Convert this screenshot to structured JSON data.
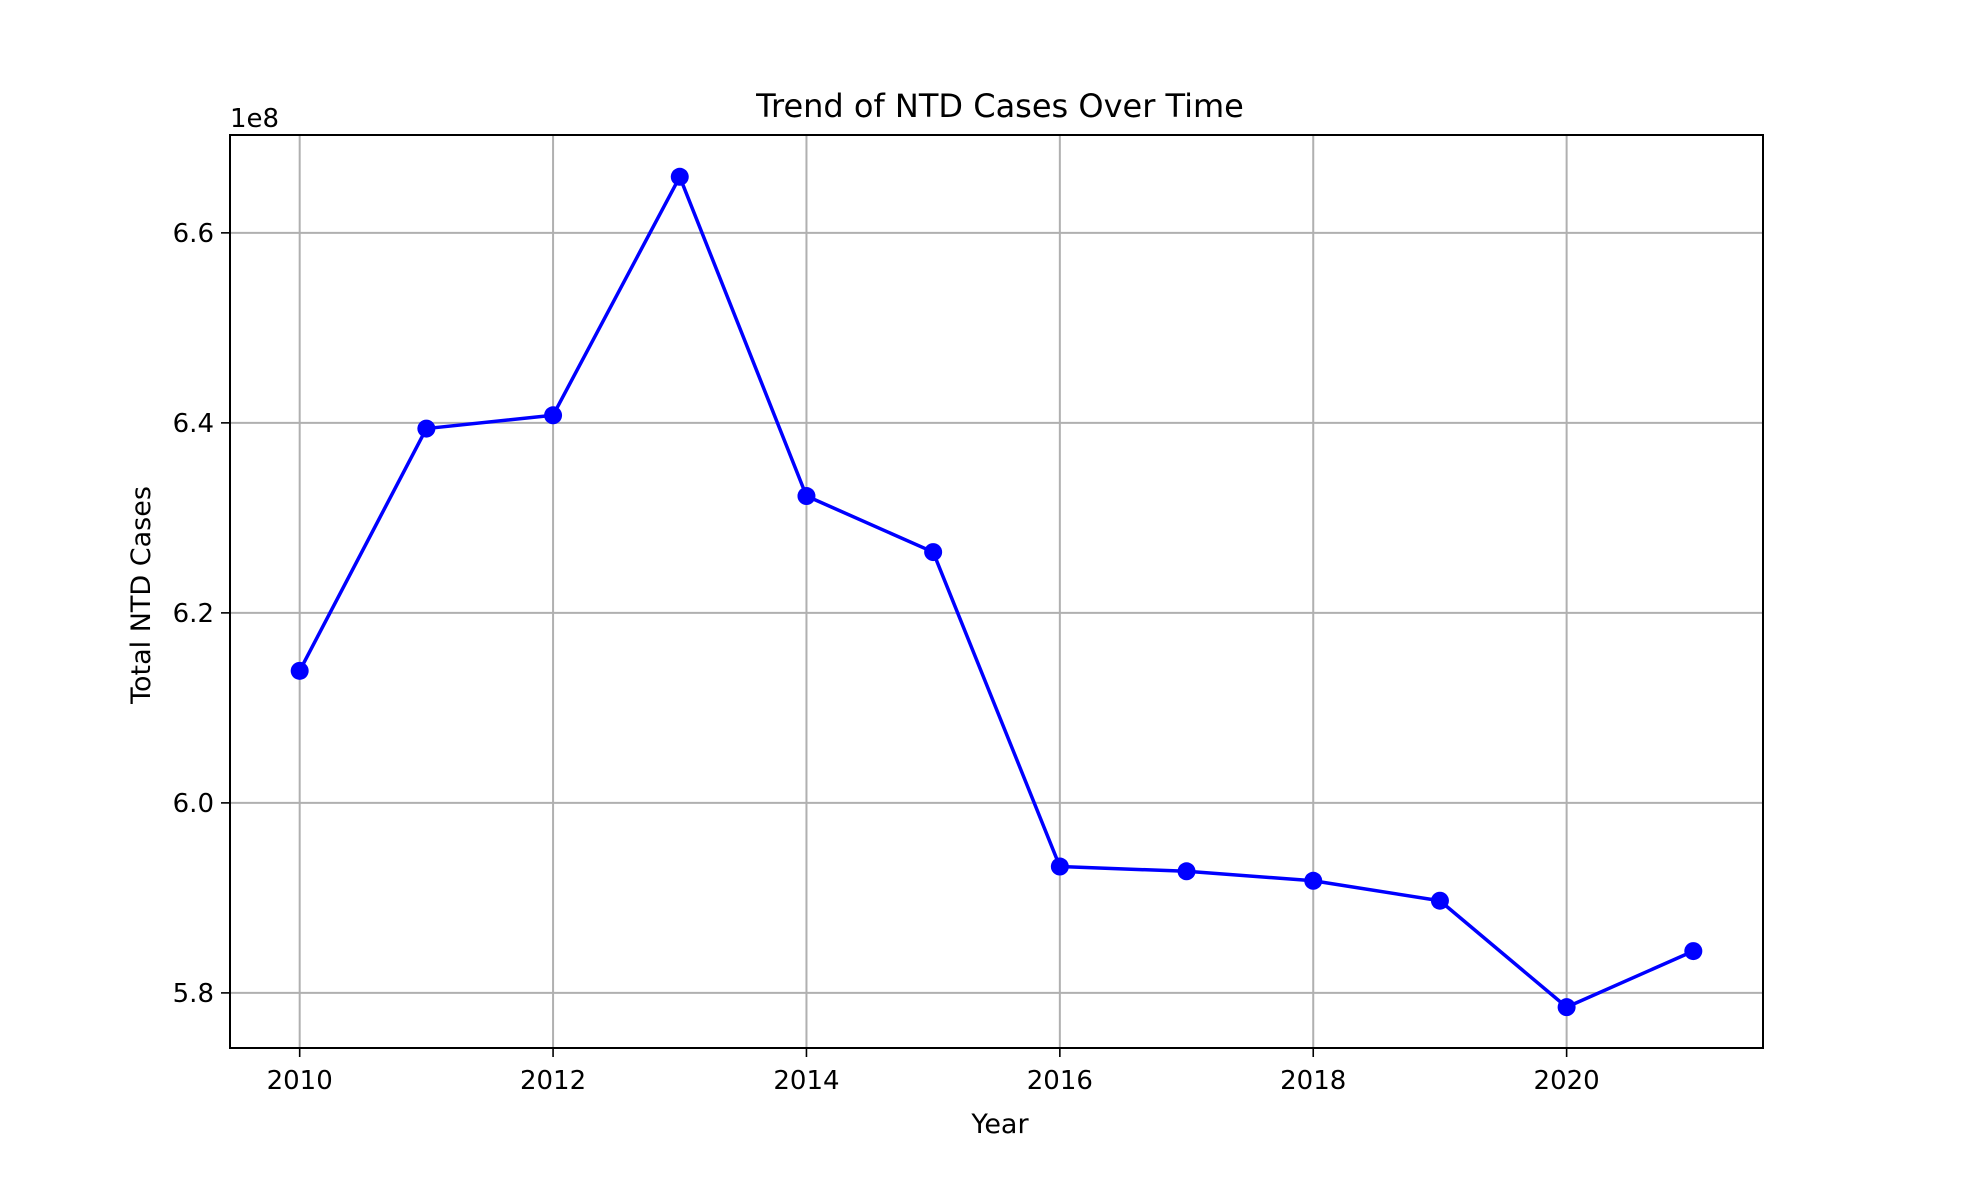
{
  "chart_data": {
    "type": "line",
    "title": "Trend of NTD Cases Over Time",
    "xlabel": "Year",
    "ylabel": "Total NTD Cases",
    "y_offset_label": "1e8",
    "x": [
      2010,
      2011,
      2012,
      2013,
      2014,
      2015,
      2016,
      2017,
      2018,
      2019,
      2020,
      2021
    ],
    "series": [
      {
        "name": "Total NTD Cases",
        "color": "#0000ff",
        "marker": "circle",
        "values": [
          613900000,
          639400000,
          640800000,
          665900000,
          632300000,
          626400000,
          593300000,
          592800000,
          591800000,
          589700000,
          578500000,
          584400000
        ]
      }
    ],
    "xlim": [
      2009.45,
      2021.55
    ],
    "ylim": [
      5.742,
      6.703
    ],
    "x_ticks": [
      2010,
      2012,
      2014,
      2016,
      2018,
      2020
    ],
    "x_tick_labels": [
      "2010",
      "2012",
      "2014",
      "2016",
      "2018",
      "2020"
    ],
    "y_ticks": [
      5.8,
      6.0,
      6.2,
      6.4,
      6.6
    ],
    "y_tick_labels": [
      "5.8",
      "6.0",
      "6.2",
      "6.4",
      "6.6"
    ],
    "grid": true,
    "legend": "none"
  }
}
